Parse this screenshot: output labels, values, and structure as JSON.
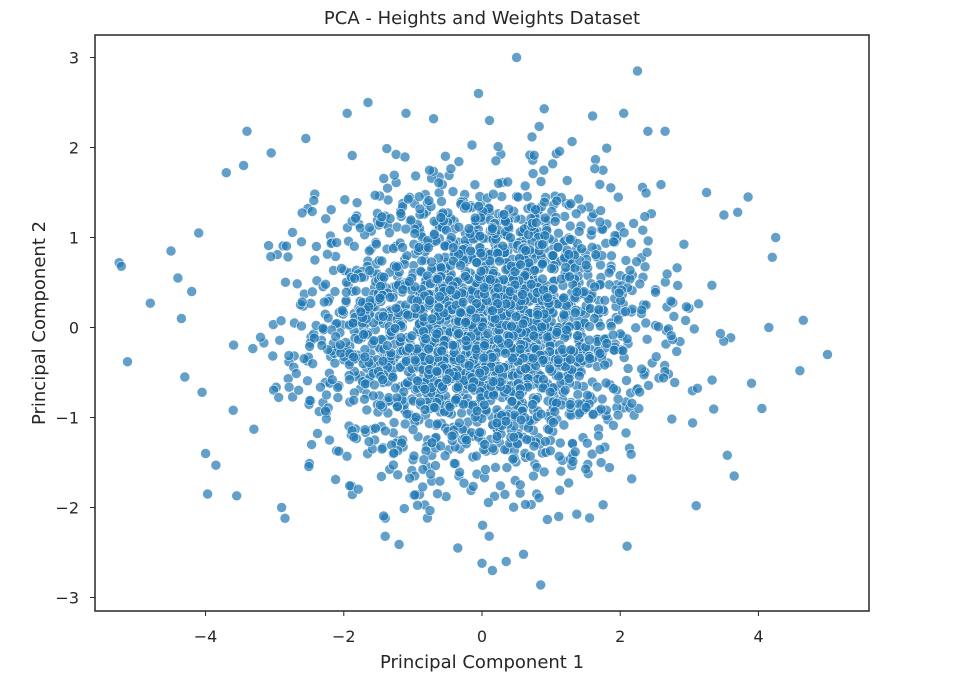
{
  "chart_data": {
    "type": "scatter",
    "title": "PCA - Heights and Weights Dataset",
    "xlabel": "Principal Component 1",
    "ylabel": "Principal Component 2",
    "xlim": [
      -5.6,
      5.6
    ],
    "ylim": [
      -3.15,
      3.25
    ],
    "xticks": [
      -4,
      -2,
      0,
      2,
      4
    ],
    "xtick_labels": [
      "−4",
      "−2",
      "0",
      "2",
      "4"
    ],
    "yticks": [
      -3,
      -2,
      -1,
      0,
      1,
      2,
      3
    ],
    "ytick_labels": [
      "−3",
      "−2",
      "−1",
      "0",
      "1",
      "2",
      "3"
    ],
    "grid": false,
    "marker_color": "#1f77b4",
    "marker_edge_color": "#ffffff",
    "marker_alpha": 0.7,
    "series": [
      {
        "points_shown_individually": [
          [
            -5.25,
            0.72
          ],
          [
            -5.22,
            0.68
          ],
          [
            -5.13,
            -0.38
          ],
          [
            -4.8,
            0.27
          ],
          [
            -4.5,
            0.85
          ],
          [
            -4.4,
            0.55
          ],
          [
            -4.35,
            0.1
          ],
          [
            -4.3,
            -0.55
          ],
          [
            -4.2,
            0.4
          ],
          [
            -4.1,
            1.05
          ],
          [
            -4.05,
            -0.72
          ],
          [
            -4.0,
            -1.4
          ],
          [
            -3.97,
            -1.85
          ],
          [
            -3.85,
            -1.53
          ],
          [
            -3.7,
            1.72
          ],
          [
            -3.6,
            -0.92
          ],
          [
            -3.55,
            -1.87
          ],
          [
            -3.45,
            1.8
          ],
          [
            -3.4,
            2.18
          ],
          [
            -3.3,
            -1.13
          ],
          [
            -3.05,
            1.94
          ],
          [
            -2.9,
            -2.0
          ],
          [
            -2.85,
            -2.12
          ],
          [
            -2.55,
            2.1
          ],
          [
            -1.95,
            2.38
          ],
          [
            -1.65,
            2.5
          ],
          [
            -1.4,
            -2.32
          ],
          [
            -1.2,
            -2.41
          ],
          [
            -1.1,
            2.38
          ],
          [
            -0.7,
            2.32
          ],
          [
            -0.35,
            -2.45
          ],
          [
            -0.05,
            2.6
          ],
          [
            0.0,
            -2.62
          ],
          [
            0.15,
            -2.7
          ],
          [
            0.35,
            -2.6
          ],
          [
            0.5,
            3.0
          ],
          [
            0.6,
            -2.52
          ],
          [
            0.85,
            -2.86
          ],
          [
            0.9,
            2.43
          ],
          [
            1.6,
            2.35
          ],
          [
            2.05,
            2.38
          ],
          [
            2.1,
            -2.43
          ],
          [
            2.25,
            2.85
          ],
          [
            2.4,
            2.18
          ],
          [
            2.65,
            2.18
          ],
          [
            3.1,
            -1.98
          ],
          [
            3.25,
            1.5
          ],
          [
            3.5,
            1.25
          ],
          [
            3.55,
            -1.42
          ],
          [
            3.65,
            -1.65
          ],
          [
            3.7,
            1.28
          ],
          [
            3.85,
            1.45
          ],
          [
            3.9,
            -0.62
          ],
          [
            4.05,
            -0.9
          ],
          [
            4.15,
            0.0
          ],
          [
            4.2,
            0.78
          ],
          [
            4.25,
            1.0
          ],
          [
            4.6,
            -0.48
          ],
          [
            4.65,
            0.08
          ],
          [
            5.0,
            -0.3
          ]
        ],
        "dense_cloud": {
          "center": [
            0.0,
            0.0
          ],
          "approx_x_extent": [
            -3.3,
            3.8
          ],
          "approx_y_extent": [
            -2.3,
            2.3
          ],
          "std_x": 1.2,
          "std_y": 0.8
        }
      }
    ]
  }
}
